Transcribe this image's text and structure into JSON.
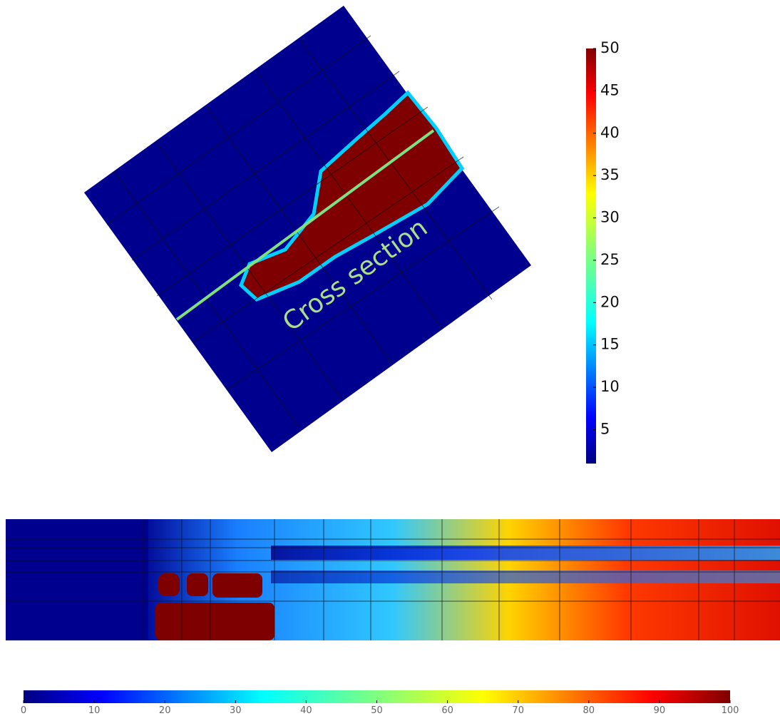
{
  "annotation": "Cross section",
  "colorbar_top": {
    "lim": [
      1,
      50
    ],
    "ticks": [
      5,
      10,
      15,
      20,
      25,
      30,
      35,
      40,
      45,
      50
    ]
  },
  "colorbar_bottom": {
    "lim": [
      0,
      100
    ],
    "ticks": [
      0,
      10,
      20,
      30,
      40,
      50,
      60,
      70,
      80,
      90,
      100
    ]
  }
}
